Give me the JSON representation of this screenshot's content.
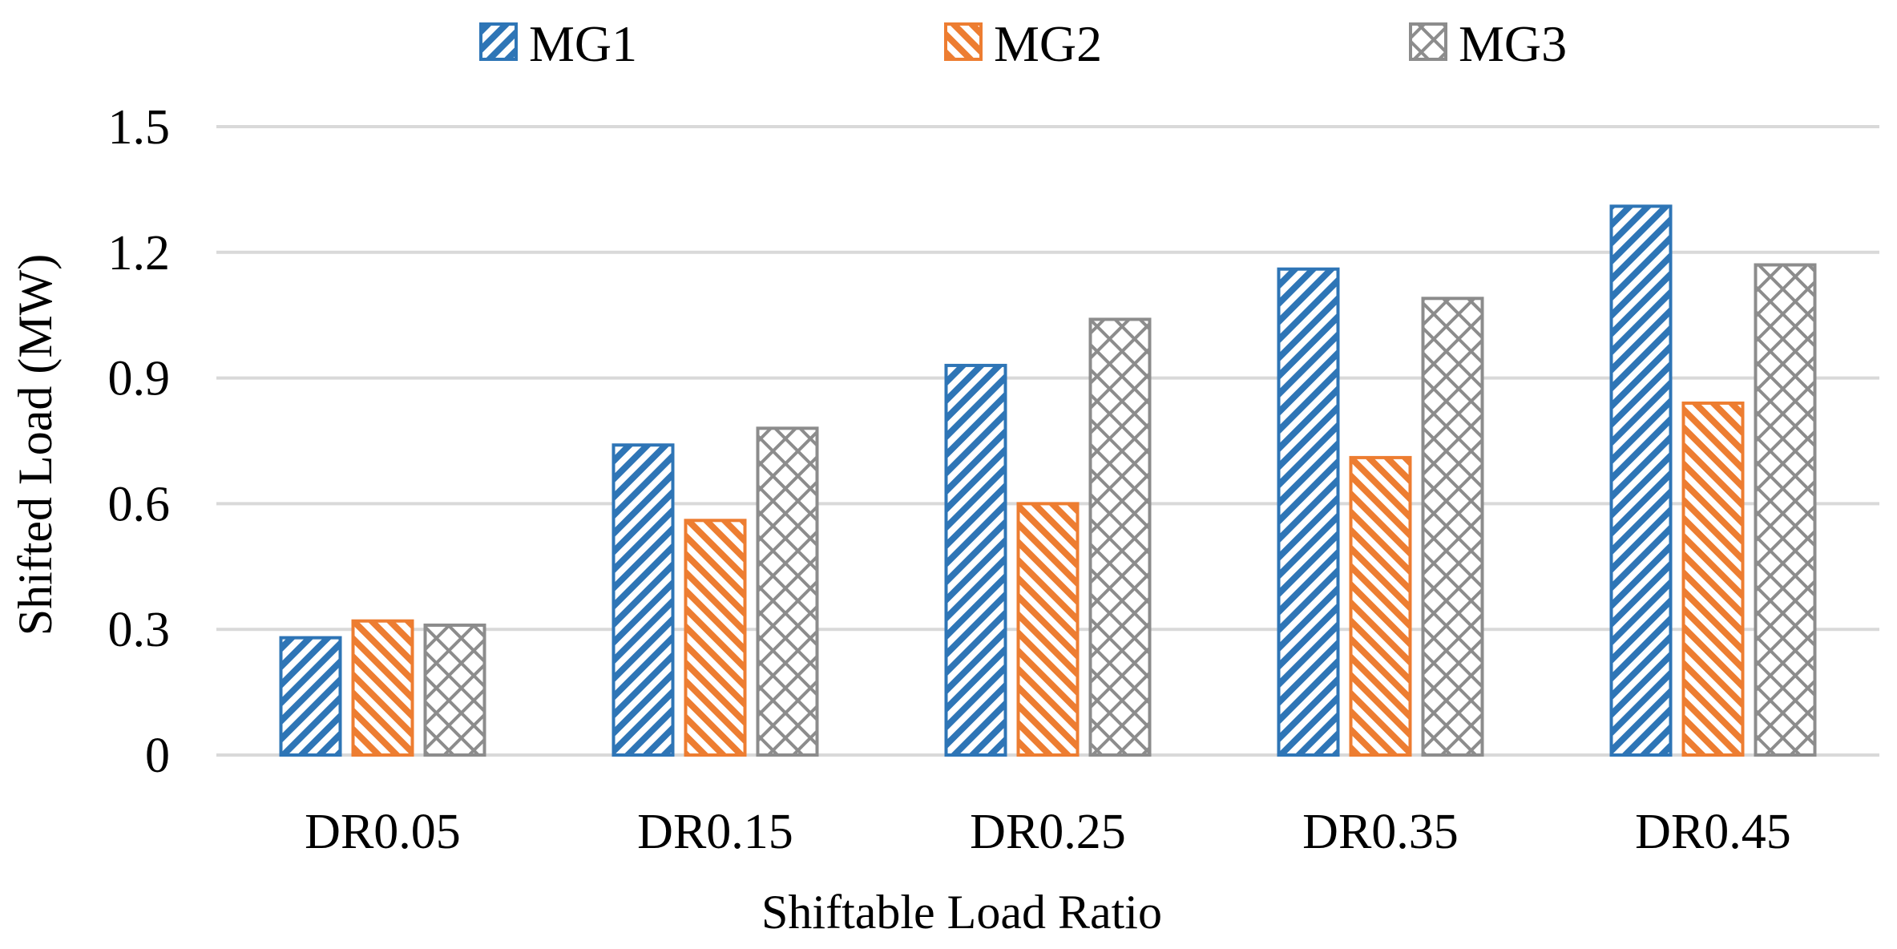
{
  "chart_data": {
    "type": "bar",
    "title": "",
    "xlabel": "Shiftable Load Ratio",
    "ylabel": "Shifted Load (MW)",
    "categories": [
      "DR0.05",
      "DR0.15",
      "DR0.25",
      "DR0.35",
      "DR0.45"
    ],
    "yticks": [
      "0",
      "0.3",
      "0.6",
      "0.9",
      "1.2",
      "1.5"
    ],
    "ylim": [
      0,
      1.5
    ],
    "grid": true,
    "legend_position": "top",
    "series": [
      {
        "name": "MG1",
        "color": "#2e75b6",
        "pattern": "wide-downward-diagonal",
        "values": [
          0.28,
          0.74,
          0.93,
          1.16,
          1.31
        ]
      },
      {
        "name": "MG2",
        "color": "#ed7d31",
        "pattern": "wide-upward-diagonal",
        "values": [
          0.32,
          0.56,
          0.6,
          0.71,
          0.84
        ]
      },
      {
        "name": "MG3",
        "color": "#8c8c8c",
        "pattern": "diagonal-cross",
        "values": [
          0.31,
          0.78,
          1.04,
          1.09,
          1.17
        ]
      }
    ]
  }
}
